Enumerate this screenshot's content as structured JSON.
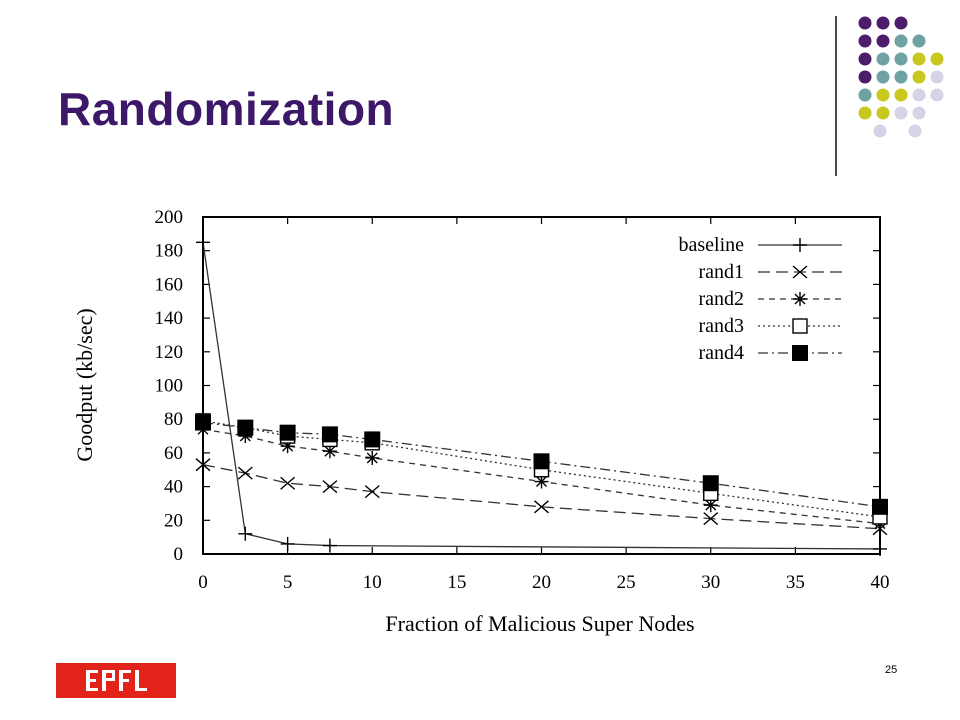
{
  "slide": {
    "title": "Randomization",
    "page_number": "25",
    "logo_text": "EPFL"
  },
  "decor": {
    "dot_colors": [
      "#4b1d6b",
      "#6fa3a3",
      "#c8c81e",
      "#d4d4e6"
    ]
  },
  "chart_data": {
    "type": "line",
    "title": "",
    "xlabel": "Fraction of Malicious Super Nodes",
    "ylabel": "Goodput (kb/sec)",
    "xlim": [
      0,
      40
    ],
    "ylim": [
      0,
      200
    ],
    "xticks": [
      0,
      5,
      10,
      15,
      20,
      25,
      30,
      35,
      40
    ],
    "yticks": [
      0,
      20,
      40,
      60,
      80,
      100,
      120,
      140,
      160,
      180,
      200
    ],
    "legend_position": "top-right",
    "grid": false,
    "series": [
      {
        "name": "baseline",
        "marker": "plus",
        "dash": "solid",
        "x": [
          0,
          2.5,
          5,
          7.5,
          40
        ],
        "y": [
          185,
          12,
          6,
          5,
          3
        ]
      },
      {
        "name": "rand1",
        "marker": "x",
        "dash": "dashed",
        "x": [
          0,
          2.5,
          5,
          7.5,
          10,
          20,
          30,
          40
        ],
        "y": [
          53,
          48,
          42,
          40,
          37,
          28,
          21,
          15
        ]
      },
      {
        "name": "rand2",
        "marker": "star",
        "dash": "shortdash",
        "x": [
          0,
          2.5,
          5,
          7.5,
          10,
          20,
          30,
          40
        ],
        "y": [
          74,
          70,
          64,
          61,
          57,
          43,
          29,
          18
        ]
      },
      {
        "name": "rand3",
        "marker": "open-square",
        "dash": "dotted",
        "x": [
          0,
          2.5,
          5,
          7.5,
          10,
          20,
          30,
          40
        ],
        "y": [
          79,
          75,
          70,
          68,
          66,
          50,
          36,
          22
        ]
      },
      {
        "name": "rand4",
        "marker": "filled-square",
        "dash": "dashdot",
        "x": [
          0,
          2.5,
          5,
          7.5,
          10,
          20,
          30,
          40
        ],
        "y": [
          78,
          75,
          72,
          71,
          68,
          55,
          42,
          28
        ]
      }
    ]
  }
}
